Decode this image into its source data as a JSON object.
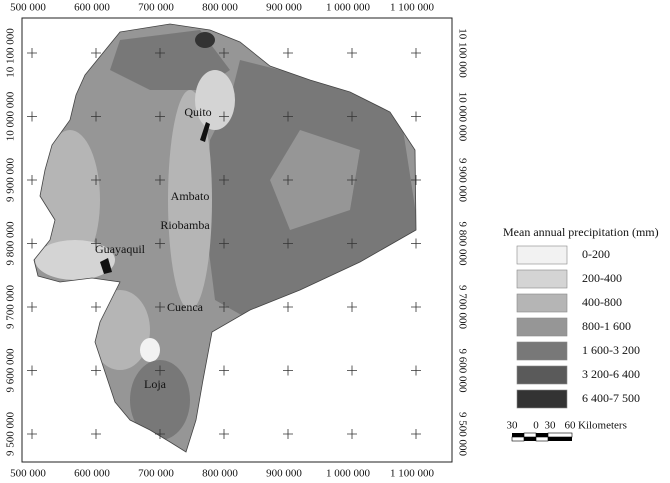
{
  "map": {
    "x_ticks": [
      {
        "value": 500000,
        "label": "500 000"
      },
      {
        "value": 600000,
        "label": "600 000"
      },
      {
        "value": 700000,
        "label": "700 000"
      },
      {
        "value": 800000,
        "label": "800 000"
      },
      {
        "value": 900000,
        "label": "900 000"
      },
      {
        "value": 1000000,
        "label": "1 000 000"
      },
      {
        "value": 1100000,
        "label": "1 100 000"
      }
    ],
    "y_ticks": [
      {
        "value": 10100000,
        "label": "10 100 000"
      },
      {
        "value": 10000000,
        "label": "10 000 000"
      },
      {
        "value": 9900000,
        "label": "9 900 000"
      },
      {
        "value": 9800000,
        "label": "9 800 000"
      },
      {
        "value": 9700000,
        "label": "9 700 000"
      },
      {
        "value": 9600000,
        "label": "9 600 000"
      },
      {
        "value": 9500000,
        "label": "9 500 000"
      }
    ],
    "cities": [
      "Quito",
      "Ambato",
      "Riobamba",
      "Guayaquil",
      "Cuenca",
      "Loja"
    ],
    "legend": {
      "title": "Mean annual precipitation (mm)",
      "items": [
        {
          "label": "0-200",
          "color": "#f2f2f2"
        },
        {
          "label": "200-400",
          "color": "#d4d4d4"
        },
        {
          "label": "400-800",
          "color": "#b5b5b5"
        },
        {
          "label": "800-1 600",
          "color": "#969696"
        },
        {
          "label": "1 600-3 200",
          "color": "#787878"
        },
        {
          "label": "3 200-6 400",
          "color": "#5a5a5a"
        },
        {
          "label": "6 400-7 500",
          "color": "#333333"
        }
      ]
    },
    "scale_bar": {
      "labels": [
        "30",
        "0",
        "30",
        "60"
      ],
      "unit": "Kilometers"
    }
  }
}
